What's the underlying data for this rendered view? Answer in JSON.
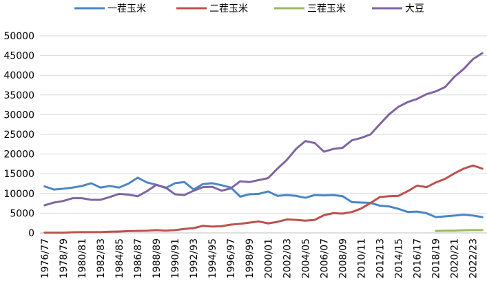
{
  "chart_data": {
    "type": "line",
    "title": "",
    "xlabel": "",
    "ylabel": "",
    "ylim": [
      0,
      50000
    ],
    "yticks": [
      0,
      5000,
      10000,
      15000,
      20000,
      25000,
      30000,
      35000,
      40000,
      45000,
      50000
    ],
    "grid": "horizontal",
    "legend_position": "top",
    "categories": [
      "1976/77",
      "1977/78",
      "1978/79",
      "1979/80",
      "1980/81",
      "1981/82",
      "1982/83",
      "1983/84",
      "1984/85",
      "1985/86",
      "1986/87",
      "1987/88",
      "1988/89",
      "1989/90",
      "1990/91",
      "1991/92",
      "1992/93",
      "1993/94",
      "1994/95",
      "1995/96",
      "1996/97",
      "1997/98",
      "1998/99",
      "1999/00",
      "2000/01",
      "2001/02",
      "2002/03",
      "2003/04",
      "2004/05",
      "2005/06",
      "2006/07",
      "2007/08",
      "2008/09",
      "2009/10",
      "2010/11",
      "2011/12",
      "2012/13",
      "2013/14",
      "2014/15",
      "2015/16",
      "2016/17",
      "2017/18",
      "2018/19",
      "2019/20",
      "2020/21",
      "2021/22",
      "2022/23",
      "2023/24"
    ],
    "tick_labels": [
      "1976/77",
      "1978/79",
      "1980/81",
      "1982/83",
      "1984/85",
      "1986/87",
      "1988/89",
      "1990/91",
      "1992/93",
      "1994/95",
      "1996/97",
      "1998/99",
      "2000/01",
      "2002/03",
      "2004/05",
      "2006/07",
      "2008/09",
      "2010/11",
      "2012/13",
      "2014/15",
      "2016/17",
      "2018/19",
      "2020/21",
      "2022/23"
    ],
    "series": [
      {
        "name": "一茬玉米",
        "color": "#4a86c5",
        "values": [
          11800,
          11000,
          11200,
          11500,
          11900,
          12600,
          11500,
          11900,
          11500,
          12500,
          14000,
          12800,
          12200,
          11400,
          12600,
          12900,
          11000,
          12400,
          12600,
          12100,
          11500,
          9200,
          9800,
          9900,
          10500,
          9400,
          9600,
          9400,
          8900,
          9600,
          9500,
          9600,
          9300,
          7800,
          7700,
          7600,
          6900,
          6700,
          6100,
          5300,
          5400,
          5000,
          4000,
          4200,
          4400,
          4600,
          4400,
          4000
        ]
      },
      {
        "name": "二茬玉米",
        "color": "#c0504d",
        "values": [
          50,
          50,
          50,
          150,
          200,
          200,
          200,
          300,
          350,
          450,
          500,
          550,
          700,
          550,
          700,
          1000,
          1200,
          1800,
          1600,
          1700,
          2100,
          2300,
          2600,
          2900,
          2400,
          2800,
          3400,
          3300,
          3100,
          3300,
          4500,
          5000,
          4900,
          5300,
          6200,
          7600,
          9100,
          9300,
          9400,
          10600,
          12000,
          11600,
          12800,
          13700,
          15100,
          16300,
          17100,
          16300
        ]
      },
      {
        "name": "三茬玉米",
        "color": "#9bbb59",
        "values": [
          null,
          null,
          null,
          null,
          null,
          null,
          null,
          null,
          null,
          null,
          null,
          null,
          null,
          null,
          null,
          null,
          null,
          null,
          null,
          null,
          null,
          null,
          null,
          null,
          null,
          null,
          null,
          null,
          null,
          null,
          null,
          null,
          null,
          null,
          null,
          null,
          null,
          null,
          null,
          null,
          null,
          null,
          500,
          550,
          550,
          650,
          700,
          700
        ]
      },
      {
        "name": "大豆",
        "color": "#8064a2",
        "values": [
          7000,
          7700,
          8100,
          8800,
          8800,
          8400,
          8400,
          9100,
          9900,
          9700,
          9300,
          10600,
          12200,
          11500,
          9800,
          9600,
          10700,
          11600,
          11700,
          10700,
          11300,
          13100,
          12900,
          13400,
          13900,
          16300,
          18500,
          21300,
          23300,
          22800,
          20600,
          21300,
          21600,
          23500,
          24100,
          25000,
          27600,
          30100,
          32000,
          33200,
          34000,
          35200,
          35900,
          37000,
          39600,
          41600,
          44100,
          45600
        ]
      }
    ]
  }
}
